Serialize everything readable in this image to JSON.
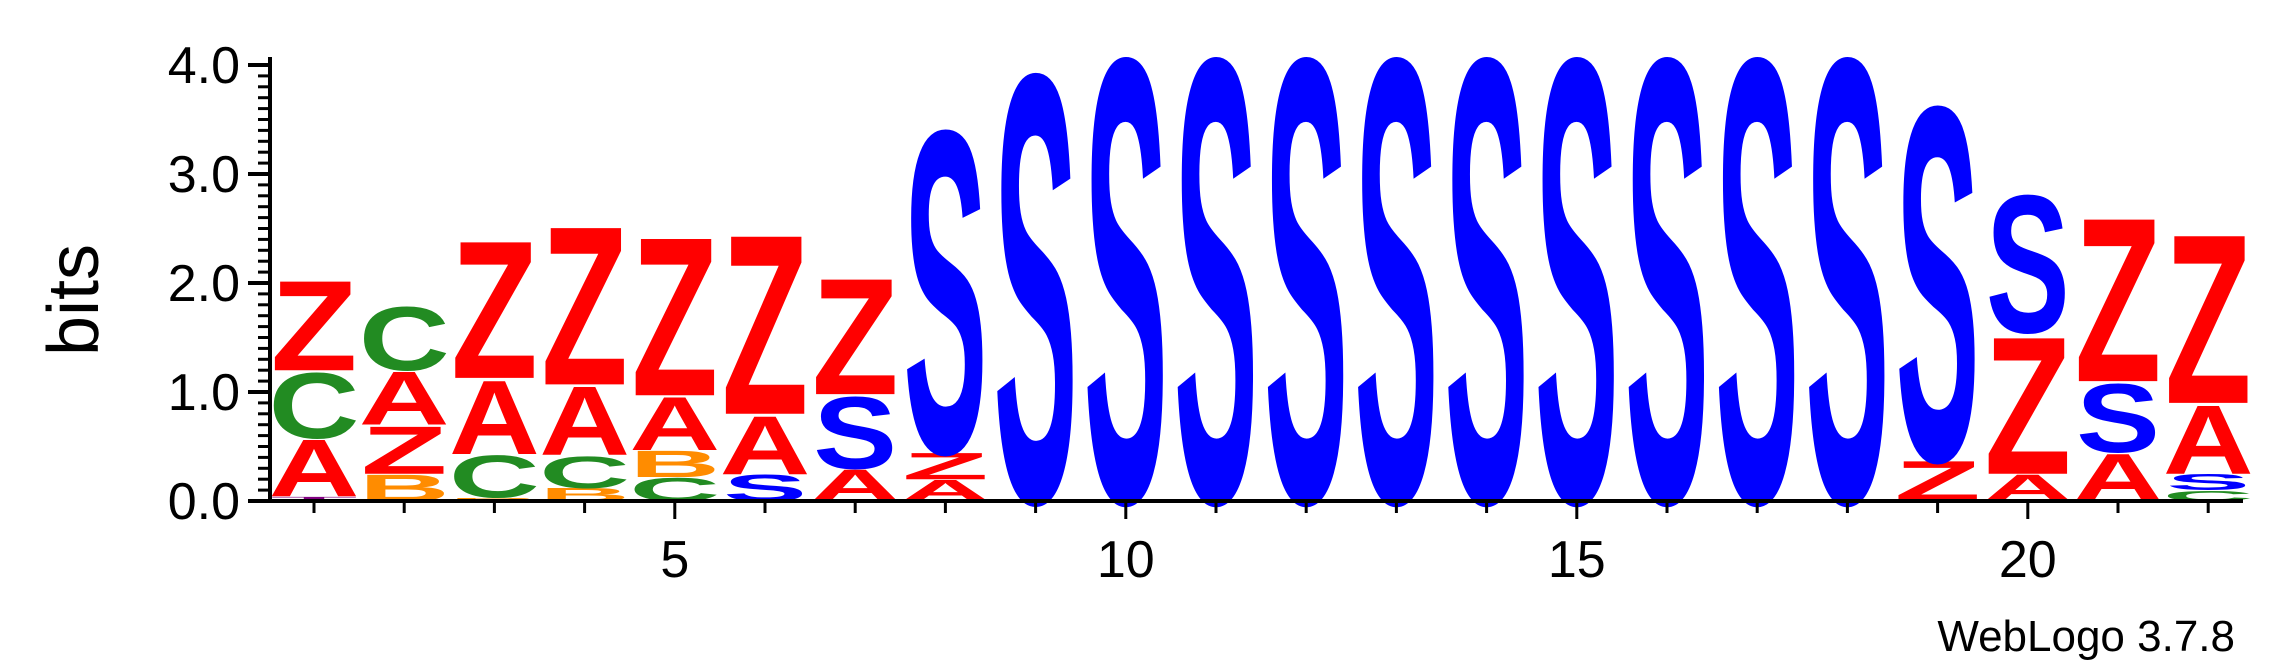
{
  "chart_data": {
    "type": "sequence-logo",
    "ylabel": "bits",
    "ylim": [
      0,
      4.0
    ],
    "y_ticks": [
      "0.0",
      "1.0",
      "2.0",
      "3.0",
      "4.0"
    ],
    "x_ticks": [
      5,
      10,
      15,
      20
    ],
    "positions": [
      1,
      2,
      3,
      4,
      5,
      6,
      7,
      8,
      9,
      10,
      11,
      12,
      13,
      14,
      15,
      16,
      17,
      18,
      19,
      20,
      21,
      22
    ],
    "colors": {
      "A": "#ff0000",
      "Z": "#ff0000",
      "S": "#0000ff",
      "C": "#228b22",
      "B": "#ff8c00",
      "T": "#800080"
    },
    "stacks": [
      [
        [
          "T",
          0.04
        ],
        [
          "A",
          0.54
        ],
        [
          "C",
          0.62
        ],
        [
          "Z",
          0.85
        ]
      ],
      [
        [
          "B",
          0.25
        ],
        [
          "Z",
          0.45
        ],
        [
          "A",
          0.5
        ],
        [
          "C",
          0.6
        ]
      ],
      [
        [
          "B",
          0.03
        ],
        [
          "C",
          0.4
        ],
        [
          "A",
          0.7
        ],
        [
          "Z",
          1.3
        ]
      ],
      [
        [
          "B",
          0.12
        ],
        [
          "C",
          0.3
        ],
        [
          "A",
          0.65
        ],
        [
          "Z",
          1.5
        ]
      ],
      [
        [
          "C",
          0.22
        ],
        [
          "B",
          0.25
        ],
        [
          "A",
          0.5
        ],
        [
          "Z",
          1.5
        ]
      ],
      [
        [
          "S",
          0.25
        ],
        [
          "A",
          0.55
        ],
        [
          "Z",
          1.7
        ]
      ],
      [
        [
          "A",
          0.3
        ],
        [
          "S",
          0.68
        ],
        [
          "Z",
          1.1
        ]
      ],
      [
        [
          "A",
          0.2
        ],
        [
          "Z",
          0.25
        ],
        [
          "S",
          3.05
        ]
      ],
      [
        [
          "S",
          4.05
        ]
      ],
      [
        [
          "S",
          4.2
        ]
      ],
      [
        [
          "S",
          4.2
        ]
      ],
      [
        [
          "S",
          4.2
        ]
      ],
      [
        [
          "S",
          4.2
        ]
      ],
      [
        [
          "S",
          4.2
        ]
      ],
      [
        [
          "S",
          4.2
        ]
      ],
      [
        [
          "S",
          4.2
        ]
      ],
      [
        [
          "S",
          4.2
        ]
      ],
      [
        [
          "S",
          4.2
        ]
      ],
      [
        [
          "Z",
          0.38
        ],
        [
          "S",
          3.35
        ]
      ],
      [
        [
          "A",
          0.25
        ],
        [
          "Z",
          1.3
        ],
        [
          "S",
          1.3
        ]
      ],
      [
        [
          "A",
          0.45
        ],
        [
          "S",
          0.65
        ],
        [
          "Z",
          1.55
        ]
      ],
      [
        [
          "C",
          0.1
        ],
        [
          "S",
          0.15
        ],
        [
          "A",
          0.65
        ],
        [
          "Z",
          1.6
        ]
      ]
    ],
    "footer": "WebLogo 3.7.8"
  }
}
